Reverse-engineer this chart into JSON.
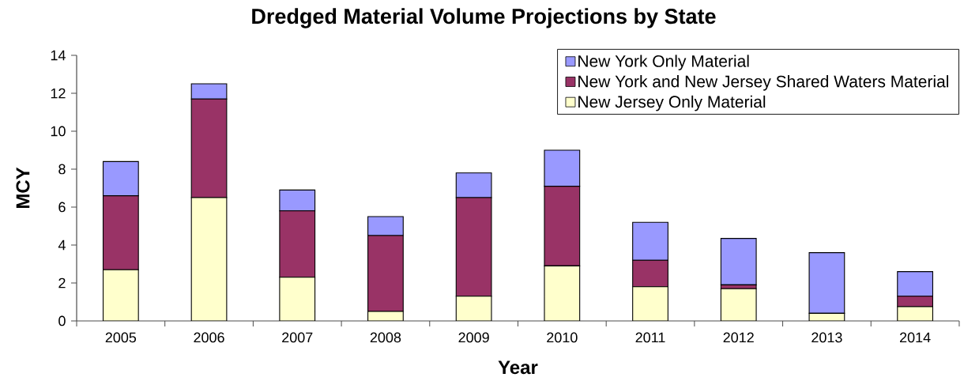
{
  "chart_data": {
    "type": "bar",
    "title": "Dredged Material Volume Projections by State",
    "xlabel": "Year",
    "ylabel": "MCY",
    "categories": [
      "2005",
      "2006",
      "2007",
      "2008",
      "2009",
      "2010",
      "2011",
      "2012",
      "2013",
      "2014"
    ],
    "stacked": true,
    "series": [
      {
        "name": "New Jersey Only Material",
        "color": "#ffffcc",
        "values": [
          2.7,
          6.5,
          2.3,
          0.5,
          1.3,
          2.9,
          1.8,
          1.7,
          0.4,
          0.75
        ]
      },
      {
        "name": "New York and New Jersey Shared Waters Material",
        "color": "#993366",
        "values": [
          3.9,
          5.2,
          3.5,
          4.0,
          5.2,
          4.2,
          1.4,
          0.2,
          0,
          0.55
        ]
      },
      {
        "name": "New York Only Material",
        "color": "#9999ff",
        "values": [
          1.8,
          0.8,
          1.1,
          1.0,
          1.3,
          1.9,
          2.0,
          2.45,
          3.2,
          1.3
        ]
      }
    ],
    "ylim": [
      0,
      14
    ],
    "yticks": [
      0,
      2,
      4,
      6,
      8,
      10,
      12,
      14
    ],
    "legend": "top right"
  }
}
